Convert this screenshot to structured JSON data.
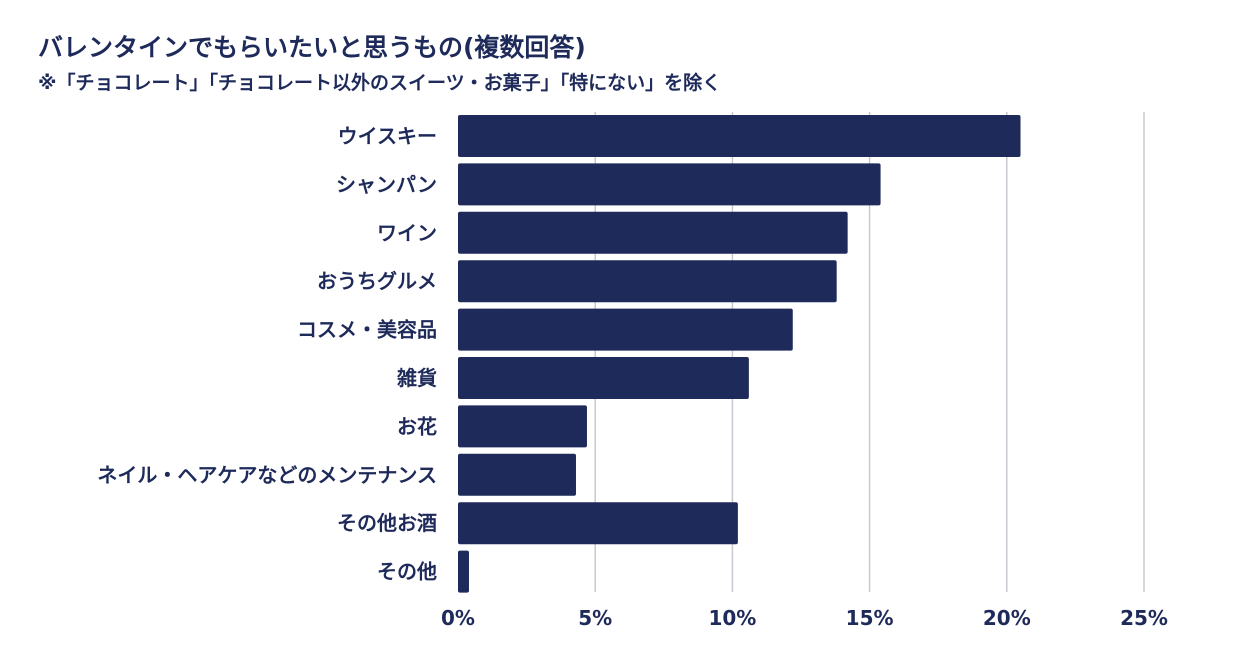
{
  "chart_data": {
    "type": "bar",
    "orientation": "horizontal",
    "title": "バレンタインでもらいたいと思うもの(複数回答)",
    "subtitle": "※「チョコレート」「チョコレート以外のスイーツ・お菓子」「特にない」を除く",
    "categories": [
      "ウイスキー",
      "シャンパン",
      "ワイン",
      "おうちグルメ",
      "コスメ・美容品",
      "雑貨",
      "お花",
      "ネイル・ヘアケアなどのメンテナンス",
      "その他お酒",
      "その他"
    ],
    "values": [
      20.5,
      15.4,
      14.2,
      13.8,
      12.2,
      10.6,
      4.7,
      4.3,
      10.2,
      0.4
    ],
    "xlim": [
      0,
      25
    ],
    "xticks": [
      0,
      5,
      10,
      15,
      20,
      25
    ],
    "xtick_labels": [
      "0%",
      "5%",
      "10%",
      "15%",
      "20%",
      "25%"
    ],
    "grid": true,
    "bar_color": "#1e2a5a",
    "grid_color": "#c8c8d0",
    "xlabel": "",
    "ylabel": ""
  }
}
